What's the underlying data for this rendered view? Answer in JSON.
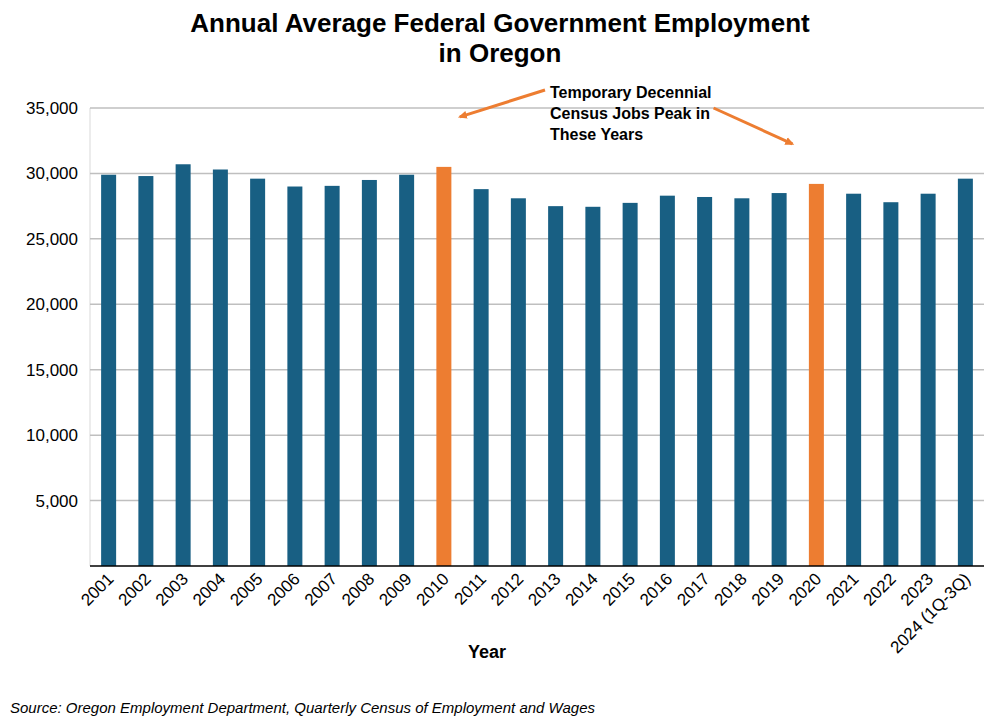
{
  "chart_data": {
    "type": "bar",
    "title": "Annual Average Federal Government Employment\nin Oregon",
    "annotation": "Temporary Decennial\nCensus Jobs Peak in\nThese Years",
    "x_label": "Year",
    "source": "Source: Oregon Employment Department, Quarterly Census of Employment and Wages",
    "categories": [
      "2001",
      "2002",
      "2003",
      "2004",
      "2005",
      "2006",
      "2007",
      "2008",
      "2009",
      "2010",
      "2011",
      "2012",
      "2013",
      "2014",
      "2015",
      "2016",
      "2017",
      "2018",
      "2019",
      "2020",
      "2021",
      "2022",
      "2023",
      "2024 (1Q-3Q)"
    ],
    "values": [
      29900,
      29800,
      30700,
      30300,
      29600,
      29000,
      29050,
      29500,
      29900,
      30500,
      28800,
      28100,
      27500,
      27450,
      27750,
      28300,
      28200,
      28100,
      28500,
      29200,
      28450,
      27800,
      28450,
      29600
    ],
    "colors": [
      "#185f83",
      "#185f83",
      "#185f83",
      "#185f83",
      "#185f83",
      "#185f83",
      "#185f83",
      "#185f83",
      "#185f83",
      "#ed7d31",
      "#185f83",
      "#185f83",
      "#185f83",
      "#185f83",
      "#185f83",
      "#185f83",
      "#185f83",
      "#185f83",
      "#185f83",
      "#ed7d31",
      "#185f83",
      "#185f83",
      "#185f83",
      "#185f83"
    ],
    "ylim": [
      0,
      35000
    ],
    "yticks": [
      {
        "value": 5000,
        "label": "5,000"
      },
      {
        "value": 10000,
        "label": "10,000"
      },
      {
        "value": 15000,
        "label": "15,000"
      },
      {
        "value": 20000,
        "label": "20,000"
      },
      {
        "value": 25000,
        "label": "25,000"
      },
      {
        "value": 30000,
        "label": "30,000"
      },
      {
        "value": 35000,
        "label": "35,000"
      }
    ],
    "grid": true
  }
}
